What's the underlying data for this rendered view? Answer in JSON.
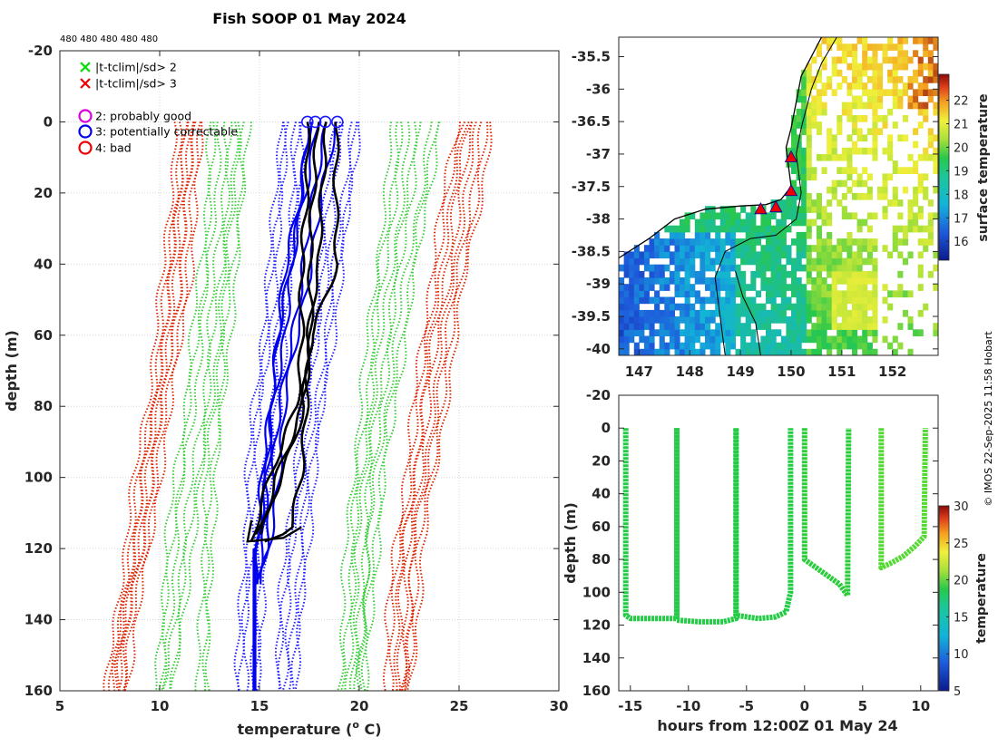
{
  "chart_data": [
    {
      "type": "line",
      "title": "Fish SOOP 01 May 2024",
      "top_annotation": "480 480 480 480 480",
      "xlabel": "temperature (° C)",
      "xlabel_parts": [
        "temperature (",
        "o",
        " C)"
      ],
      "ylabel": "depth (m)",
      "xlim": [
        5,
        30
      ],
      "ylim": [
        -20,
        160
      ],
      "y_reversed": true,
      "xticks": [
        "5",
        "10",
        "15",
        "20",
        "25",
        "30"
      ],
      "yticks": [
        "-20",
        "0",
        "20",
        "40",
        "60",
        "80",
        "100",
        "120",
        "140",
        "160"
      ],
      "legend": [
        {
          "marker": "x",
          "color": "#00dd00",
          "label": "|t-tclim|/sd> 2"
        },
        {
          "marker": "x",
          "color": "#ee0000",
          "label": "|t-tclim|/sd> 3"
        },
        {
          "marker": "o",
          "color": "#dd00dd",
          "label": "2: probably good"
        },
        {
          "marker": "o",
          "color": "#0000ee",
          "label": "3: potentially correctable"
        },
        {
          "marker": "o",
          "color": "#ee0000",
          "label": "4: bad"
        }
      ],
      "climatology_envelopes": [
        {
          "name": "-3sd",
          "color": "#dd2200",
          "depth": [
            0,
            20,
            40,
            60,
            80,
            100,
            120,
            140,
            160
          ],
          "series": [
            [
              11.0,
              10.8,
              10.5,
              10.0,
              9.6,
              9.0,
              8.5,
              8.0,
              7.6
            ],
            [
              11.5,
              11.2,
              10.9,
              10.4,
              10.0,
              9.4,
              8.9,
              8.3,
              7.9
            ],
            [
              12.0,
              11.7,
              11.4,
              10.9,
              10.4,
              9.8,
              9.3,
              8.7,
              8.1
            ]
          ]
        },
        {
          "name": "-2sd",
          "color": "#33cc33",
          "depth": [
            0,
            20,
            40,
            60,
            80,
            100,
            120,
            140,
            160
          ],
          "series": [
            [
              12.8,
              12.6,
              12.3,
              11.9,
              11.5,
              11.0,
              10.6,
              10.3,
              10.0
            ],
            [
              13.6,
              13.4,
              13.1,
              12.7,
              12.4,
              11.9,
              11.4,
              11.0,
              10.5
            ],
            [
              14.2,
              14.0,
              13.7,
              13.3,
              13.0,
              12.6,
              12.4,
              12.3,
              12.2
            ]
          ]
        },
        {
          "name": "+2sd",
          "color": "#33cc33",
          "depth": [
            0,
            20,
            40,
            60,
            80,
            100,
            120,
            140,
            160
          ],
          "series": [
            [
              22.0,
              21.6,
              21.1,
              20.7,
              20.3,
              19.9,
              19.6,
              19.4,
              19.2
            ],
            [
              22.8,
              22.4,
              21.9,
              21.4,
              20.9,
              20.5,
              20.2,
              20.0,
              19.9
            ],
            [
              23.8,
              23.3,
              22.7,
              22.1,
              21.6,
              21.1,
              20.7,
              20.4,
              20.2
            ]
          ]
        },
        {
          "name": "+3sd",
          "color": "#dd2200",
          "depth": [
            0,
            20,
            40,
            60,
            80,
            100,
            120,
            140,
            160
          ],
          "series": [
            [
              25.2,
              24.5,
              23.9,
              23.4,
              23.0,
              22.5,
              22.0,
              21.7,
              21.5
            ],
            [
              25.8,
              25.1,
              24.6,
              24.0,
              23.5,
              23.0,
              22.5,
              22.3,
              22.1
            ],
            [
              26.5,
              25.9,
              25.2,
              24.7,
              24.1,
              23.6,
              23.0,
              22.7,
              22.4
            ]
          ]
        }
      ],
      "climatology_mean": {
        "name": "mean",
        "color": "#1a1aff",
        "depth": [
          0,
          20,
          40,
          60,
          80,
          100,
          120,
          140,
          160
        ],
        "series": [
          [
            16.2,
            16.0,
            15.7,
            15.3,
            14.9,
            14.6,
            14.4,
            14.2,
            14.1
          ],
          [
            17.0,
            16.8,
            16.5,
            16.1,
            15.8,
            15.4,
            15.1,
            14.9,
            14.8
          ],
          [
            19.0,
            18.6,
            18.2,
            17.8,
            17.3,
            16.9,
            16.5,
            16.2,
            16.0
          ],
          [
            19.8,
            19.4,
            19.0,
            18.5,
            18.0,
            17.6,
            17.2,
            16.9,
            16.7
          ]
        ]
      },
      "profiles": [
        {
          "name": "profile-1",
          "color": "#000000",
          "depth": [
            0,
            20,
            40,
            60,
            80,
            90,
            100,
            110,
            118
          ],
          "temperature": [
            17.4,
            17.3,
            17.2,
            17.1,
            16.8,
            16.2,
            15.6,
            15.0,
            14.6
          ]
        },
        {
          "name": "profile-2",
          "color": "#000000",
          "depth": [
            0,
            20,
            40,
            60,
            80,
            90,
            100,
            110,
            117
          ],
          "temperature": [
            17.8,
            17.7,
            17.6,
            17.5,
            17.2,
            16.6,
            15.9,
            15.3,
            14.8
          ]
        },
        {
          "name": "profile-3",
          "color": "#000000",
          "depth": [
            0,
            20,
            40,
            50,
            60,
            80,
            90,
            100,
            116
          ],
          "temperature": [
            18.3,
            18.2,
            18.0,
            17.6,
            17.4,
            17.3,
            16.8,
            16.0,
            15.0
          ]
        },
        {
          "name": "profile-4",
          "color": "#000000",
          "depth": [
            0,
            20,
            40,
            50,
            60,
            80,
            100,
            115,
            118
          ],
          "temperature": [
            18.9,
            18.9,
            18.8,
            18.2,
            17.6,
            17.4,
            17.0,
            16.5,
            15.2
          ]
        }
      ],
      "profile_markers": [
        {
          "color": "#1a1aff",
          "temperature": [
            17.4,
            17.8,
            18.3,
            18.9
          ]
        }
      ],
      "deep_profiles": {
        "color": "#0000ee",
        "depth_start": 120,
        "depth_end": 160,
        "temperature": [
          14.8,
          14.9
        ]
      }
    },
    {
      "type": "heatmap",
      "subtype": "sea-surface-temperature map",
      "xticks": [
        "147",
        "148",
        "149",
        "150",
        "151",
        "152"
      ],
      "xlim": [
        146.6,
        152.9
      ],
      "yticks": [
        "-35.5",
        "-36",
        "-36.5",
        "-37",
        "-37.5",
        "-38",
        "-38.5",
        "-39",
        "-39.5",
        "-40"
      ],
      "ylim": [
        -40.1,
        -35.2
      ],
      "colorbar": {
        "label": "surface temperature",
        "range": [
          15.2,
          23.1
        ],
        "ticks": [
          "16",
          "17",
          "18",
          "19",
          "20",
          "21",
          "22"
        ]
      },
      "markers": [
        {
          "lon": 150.0,
          "lat": -37.05,
          "color": "#ee0000"
        },
        {
          "lon": 150.0,
          "lat": -37.57,
          "color": "#ee0000"
        },
        {
          "lon": 149.7,
          "lat": -37.82,
          "color": "#ee0000"
        },
        {
          "lon": 149.4,
          "lat": -37.85,
          "color": "#ee0000"
        }
      ]
    },
    {
      "type": "scatter",
      "xlabel": "hours from 12:00Z 01 May 24",
      "ylabel": "depth (m)",
      "xlim": [
        -16,
        11.5
      ],
      "ylim": [
        -20,
        160
      ],
      "y_reversed": true,
      "xticks": [
        "-15",
        "-10",
        "-5",
        "0",
        "5",
        "10"
      ],
      "yticks": [
        "-20",
        "0",
        "20",
        "40",
        "60",
        "80",
        "100",
        "120",
        "140",
        "160"
      ],
      "colorbar": {
        "label": "temperature",
        "range": [
          5,
          30
        ],
        "ticks": [
          "5",
          "10",
          "15",
          "20",
          "25",
          "30"
        ]
      },
      "casts": [
        {
          "time": [
            -15.4,
            -15.4,
            -15.0,
            -12.0,
            -11.0,
            -11.0
          ],
          "depth": [
            0,
            114,
            116,
            116,
            116,
            0
          ],
          "color": "#22cc44"
        },
        {
          "time": [
            -11.0,
            -11.0,
            -9.0,
            -7.0,
            -5.9,
            -5.9
          ],
          "depth": [
            0,
            117,
            118,
            118,
            116,
            0
          ],
          "color": "#22cc44"
        },
        {
          "time": [
            -5.9,
            -5.9,
            -4.0,
            -2.5,
            -1.6,
            -1.2,
            -1.2
          ],
          "depth": [
            0,
            114,
            116,
            115,
            112,
            100,
            0
          ],
          "color": "#22cc44"
        },
        {
          "time": [
            0.0,
            0.0,
            1.0,
            2.0,
            3.0,
            3.5,
            3.7,
            3.8
          ],
          "depth": [
            0,
            80,
            85,
            90,
            95,
            100,
            102,
            0
          ],
          "color": "#2acc3a"
        },
        {
          "time": [
            6.6,
            6.6,
            7.5,
            8.5,
            9.5,
            10.3,
            10.4
          ],
          "depth": [
            0,
            85,
            82,
            78,
            72,
            66,
            0
          ],
          "color": "#55d833"
        }
      ]
    }
  ],
  "map_credit": "© IMOS 22-Sep-2025 11:58 Hobart"
}
